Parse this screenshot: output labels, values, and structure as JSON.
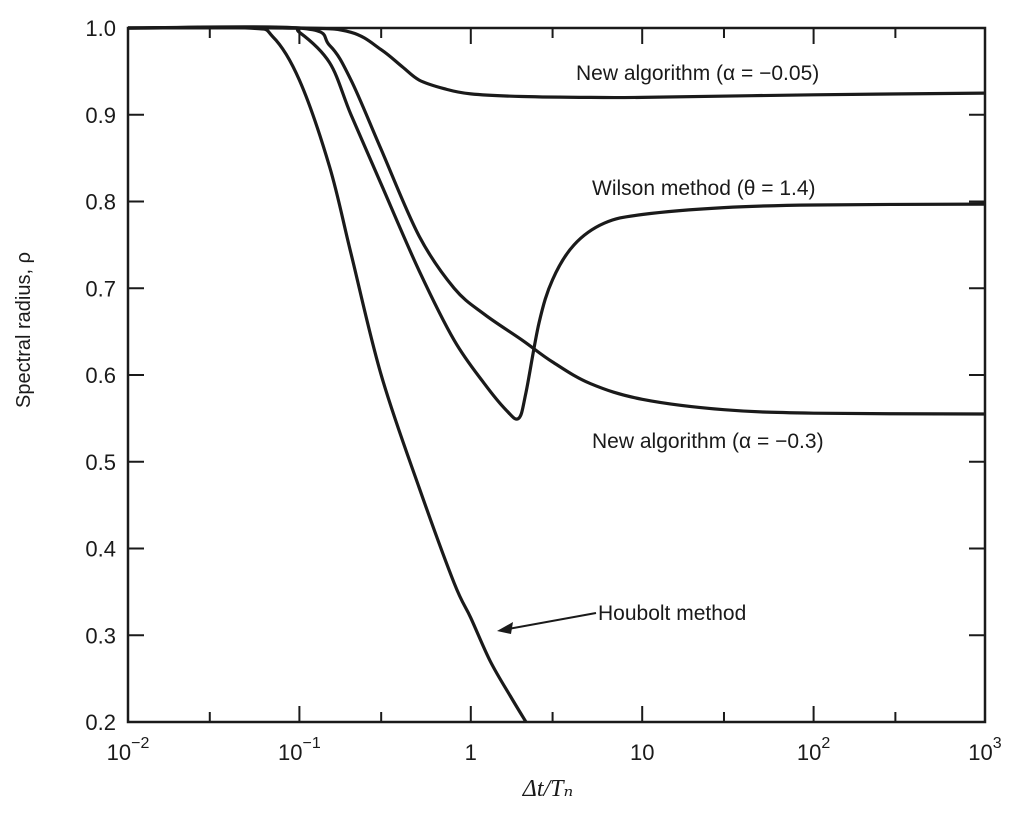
{
  "chart_data": {
    "type": "line",
    "xlabel": "Δt/Tₙ",
    "ylabel": "Spectral radius, ρ",
    "xscale": "log",
    "xlim": [
      0.01,
      1000
    ],
    "ylim": [
      0.2,
      1.0
    ],
    "grid": false,
    "x_ticks": [
      {
        "value": 0.01,
        "base": "10",
        "exp": "−2"
      },
      {
        "value": 0.1,
        "base": "10",
        "exp": "−1"
      },
      {
        "value": 1,
        "base": "1",
        "exp": ""
      },
      {
        "value": 10,
        "base": "10",
        "exp": ""
      },
      {
        "value": 100,
        "base": "10",
        "exp": "2"
      },
      {
        "value": 1000,
        "base": "10",
        "exp": "3"
      }
    ],
    "y_ticks": [
      "0.2",
      "0.3",
      "0.4",
      "0.5",
      "0.6",
      "0.7",
      "0.8",
      "0.9",
      "1.0"
    ],
    "series": [
      {
        "name": "New algorithm (α = −0.05)",
        "color": "#1a1a1a",
        "points": [
          [
            0.01,
            1.0
          ],
          [
            0.1,
            1.0
          ],
          [
            0.2,
            0.995
          ],
          [
            0.3,
            0.975
          ],
          [
            0.4,
            0.955
          ],
          [
            0.5,
            0.94
          ],
          [
            0.7,
            0.93
          ],
          [
            1,
            0.924
          ],
          [
            2,
            0.921
          ],
          [
            5,
            0.92
          ],
          [
            10,
            0.92
          ],
          [
            100,
            0.923
          ],
          [
            1000,
            0.925
          ]
        ]
      },
      {
        "name": "Wilson method (θ = 1.4)",
        "color": "#1a1a1a",
        "points": [
          [
            0.01,
            1.0
          ],
          [
            0.08,
            1.0
          ],
          [
            0.1,
            0.995
          ],
          [
            0.15,
            0.96
          ],
          [
            0.2,
            0.9
          ],
          [
            0.3,
            0.82
          ],
          [
            0.5,
            0.72
          ],
          [
            0.8,
            0.64
          ],
          [
            1.2,
            0.59
          ],
          [
            1.6,
            0.56
          ],
          [
            1.9,
            0.55
          ],
          [
            2.1,
            0.58
          ],
          [
            2.5,
            0.66
          ],
          [
            3,
            0.71
          ],
          [
            4,
            0.75
          ],
          [
            6,
            0.775
          ],
          [
            10,
            0.785
          ],
          [
            30,
            0.793
          ],
          [
            100,
            0.796
          ],
          [
            1000,
            0.797
          ]
        ]
      },
      {
        "name": "New algorithm (α = −0.3)",
        "color": "#1a1a1a",
        "points": [
          [
            0.01,
            1.0
          ],
          [
            0.1,
            1.0
          ],
          [
            0.15,
            0.98
          ],
          [
            0.2,
            0.94
          ],
          [
            0.3,
            0.86
          ],
          [
            0.5,
            0.76
          ],
          [
            0.8,
            0.7
          ],
          [
            1.2,
            0.67
          ],
          [
            2,
            0.64
          ],
          [
            3,
            0.615
          ],
          [
            5,
            0.59
          ],
          [
            10,
            0.572
          ],
          [
            30,
            0.56
          ],
          [
            100,
            0.556
          ],
          [
            1000,
            0.555
          ]
        ]
      },
      {
        "name": "Houbolt method",
        "color": "#1a1a1a",
        "points": [
          [
            0.01,
            1.0
          ],
          [
            0.05,
            1.0
          ],
          [
            0.07,
            0.99
          ],
          [
            0.1,
            0.94
          ],
          [
            0.15,
            0.84
          ],
          [
            0.2,
            0.74
          ],
          [
            0.3,
            0.6
          ],
          [
            0.5,
            0.47
          ],
          [
            0.8,
            0.36
          ],
          [
            1,
            0.32
          ],
          [
            1.3,
            0.27
          ],
          [
            1.7,
            0.23
          ],
          [
            2.1,
            0.2
          ]
        ]
      }
    ],
    "annotations": [
      {
        "text": "New algorithm (α = −0.05)"
      },
      {
        "text": "Wilson method (θ = 1.4)"
      },
      {
        "text": "New algorithm (α = −0.3)"
      },
      {
        "text": "Houbolt method"
      }
    ]
  }
}
